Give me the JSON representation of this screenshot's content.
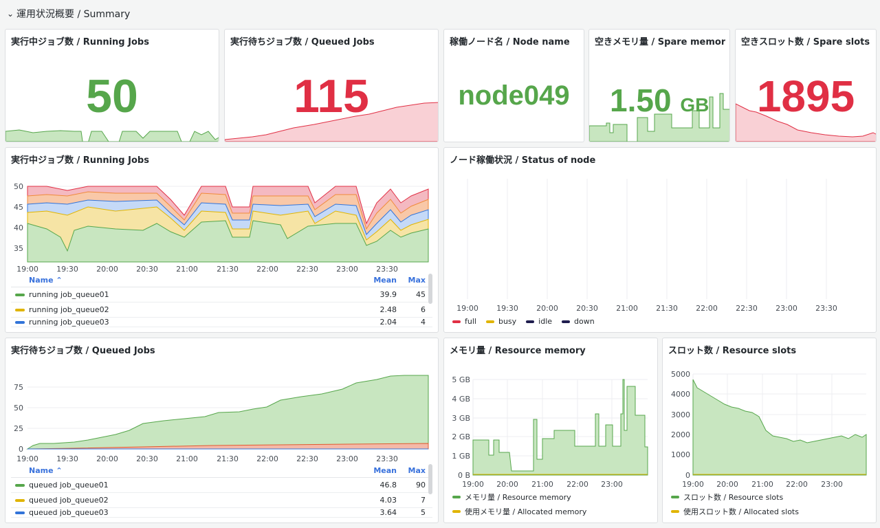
{
  "row": {
    "title": "運用状況概要 / Summary",
    "chevron_icon": "chevron-down-icon"
  },
  "stats": {
    "running": {
      "title": "実行中ジョブ数 / Running Jobs",
      "value": "50",
      "color": "#56a64b"
    },
    "queued": {
      "title": "実行待ちジョブ数 / Queued Jobs",
      "value": "115",
      "color": "#e02f44"
    },
    "node": {
      "title": "稼働ノード名 / Node name",
      "value": "node049",
      "color": "#56a64b"
    },
    "memory": {
      "title": "空きメモリ量 / Spare memory",
      "value": "1.50",
      "unit": "GB",
      "color": "#56a64b"
    },
    "slots": {
      "title": "空きスロット数 / Spare slots",
      "value": "1895",
      "color": "#e02f44"
    }
  },
  "x_ticks": [
    "19:00",
    "19:30",
    "20:00",
    "20:30",
    "21:00",
    "21:30",
    "22:00",
    "22:30",
    "23:00",
    "23:30"
  ],
  "running_panel": {
    "title": "実行中ジョブ数 / Running Jobs",
    "y_ticks": [
      "50",
      "45",
      "40",
      "35"
    ],
    "legend": {
      "col_name": "Name",
      "col_mean": "Mean",
      "col_max": "Max",
      "rows": [
        {
          "name": "running job_queue01",
          "mean": "39.9",
          "max": "45",
          "color": "#56a64b"
        },
        {
          "name": "running job_queue02",
          "mean": "2.48",
          "max": "6",
          "color": "#e0b400"
        },
        {
          "name": "running job_queue03",
          "mean": "2.04",
          "max": "4",
          "color": "#3274d9"
        }
      ]
    }
  },
  "node_panel": {
    "title": "ノード稼働状況 / Status of node",
    "legend": [
      {
        "label": "full",
        "color": "#e02f44"
      },
      {
        "label": "busy",
        "color": "#e0b400"
      },
      {
        "label": "idle",
        "color": "#1f1d4e"
      },
      {
        "label": "down",
        "color": "#1f1d4e"
      }
    ]
  },
  "queued_panel": {
    "title": "実行待ちジョブ数 / Queued Jobs",
    "y_ticks": [
      "75",
      "50",
      "25",
      "0"
    ],
    "legend": {
      "col_name": "Name",
      "col_mean": "Mean",
      "col_max": "Max",
      "rows": [
        {
          "name": "queued job_queue01",
          "mean": "46.8",
          "max": "90",
          "color": "#56a64b"
        },
        {
          "name": "queued job_queue02",
          "mean": "4.03",
          "max": "7",
          "color": "#e0b400"
        },
        {
          "name": "queued job_queue03",
          "mean": "3.64",
          "max": "5",
          "color": "#3274d9"
        }
      ]
    }
  },
  "memory_panel": {
    "title": "メモリ量 / Resource memory",
    "y_ticks": [
      "5 GB",
      "4 GB",
      "3 GB",
      "2 GB",
      "1 GB",
      "0 B"
    ],
    "x_ticks": [
      "19:00",
      "20:00",
      "21:00",
      "22:00",
      "23:00"
    ],
    "legend": [
      {
        "label": "メモリ量 / Resource memory",
        "color": "#56a64b"
      },
      {
        "label": "使用メモリ量 / Allocated memory",
        "color": "#e0b400"
      }
    ]
  },
  "slots_panel": {
    "title": "スロット数 / Resource slots",
    "y_ticks": [
      "5000",
      "4000",
      "3000",
      "2000",
      "1000",
      "0"
    ],
    "x_ticks": [
      "19:00",
      "20:00",
      "21:00",
      "22:00",
      "23:00"
    ],
    "legend": [
      {
        "label": "スロット数 / Resource slots",
        "color": "#56a64b"
      },
      {
        "label": "使用スロット数 / Allocated slots",
        "color": "#e0b400"
      }
    ]
  }
}
